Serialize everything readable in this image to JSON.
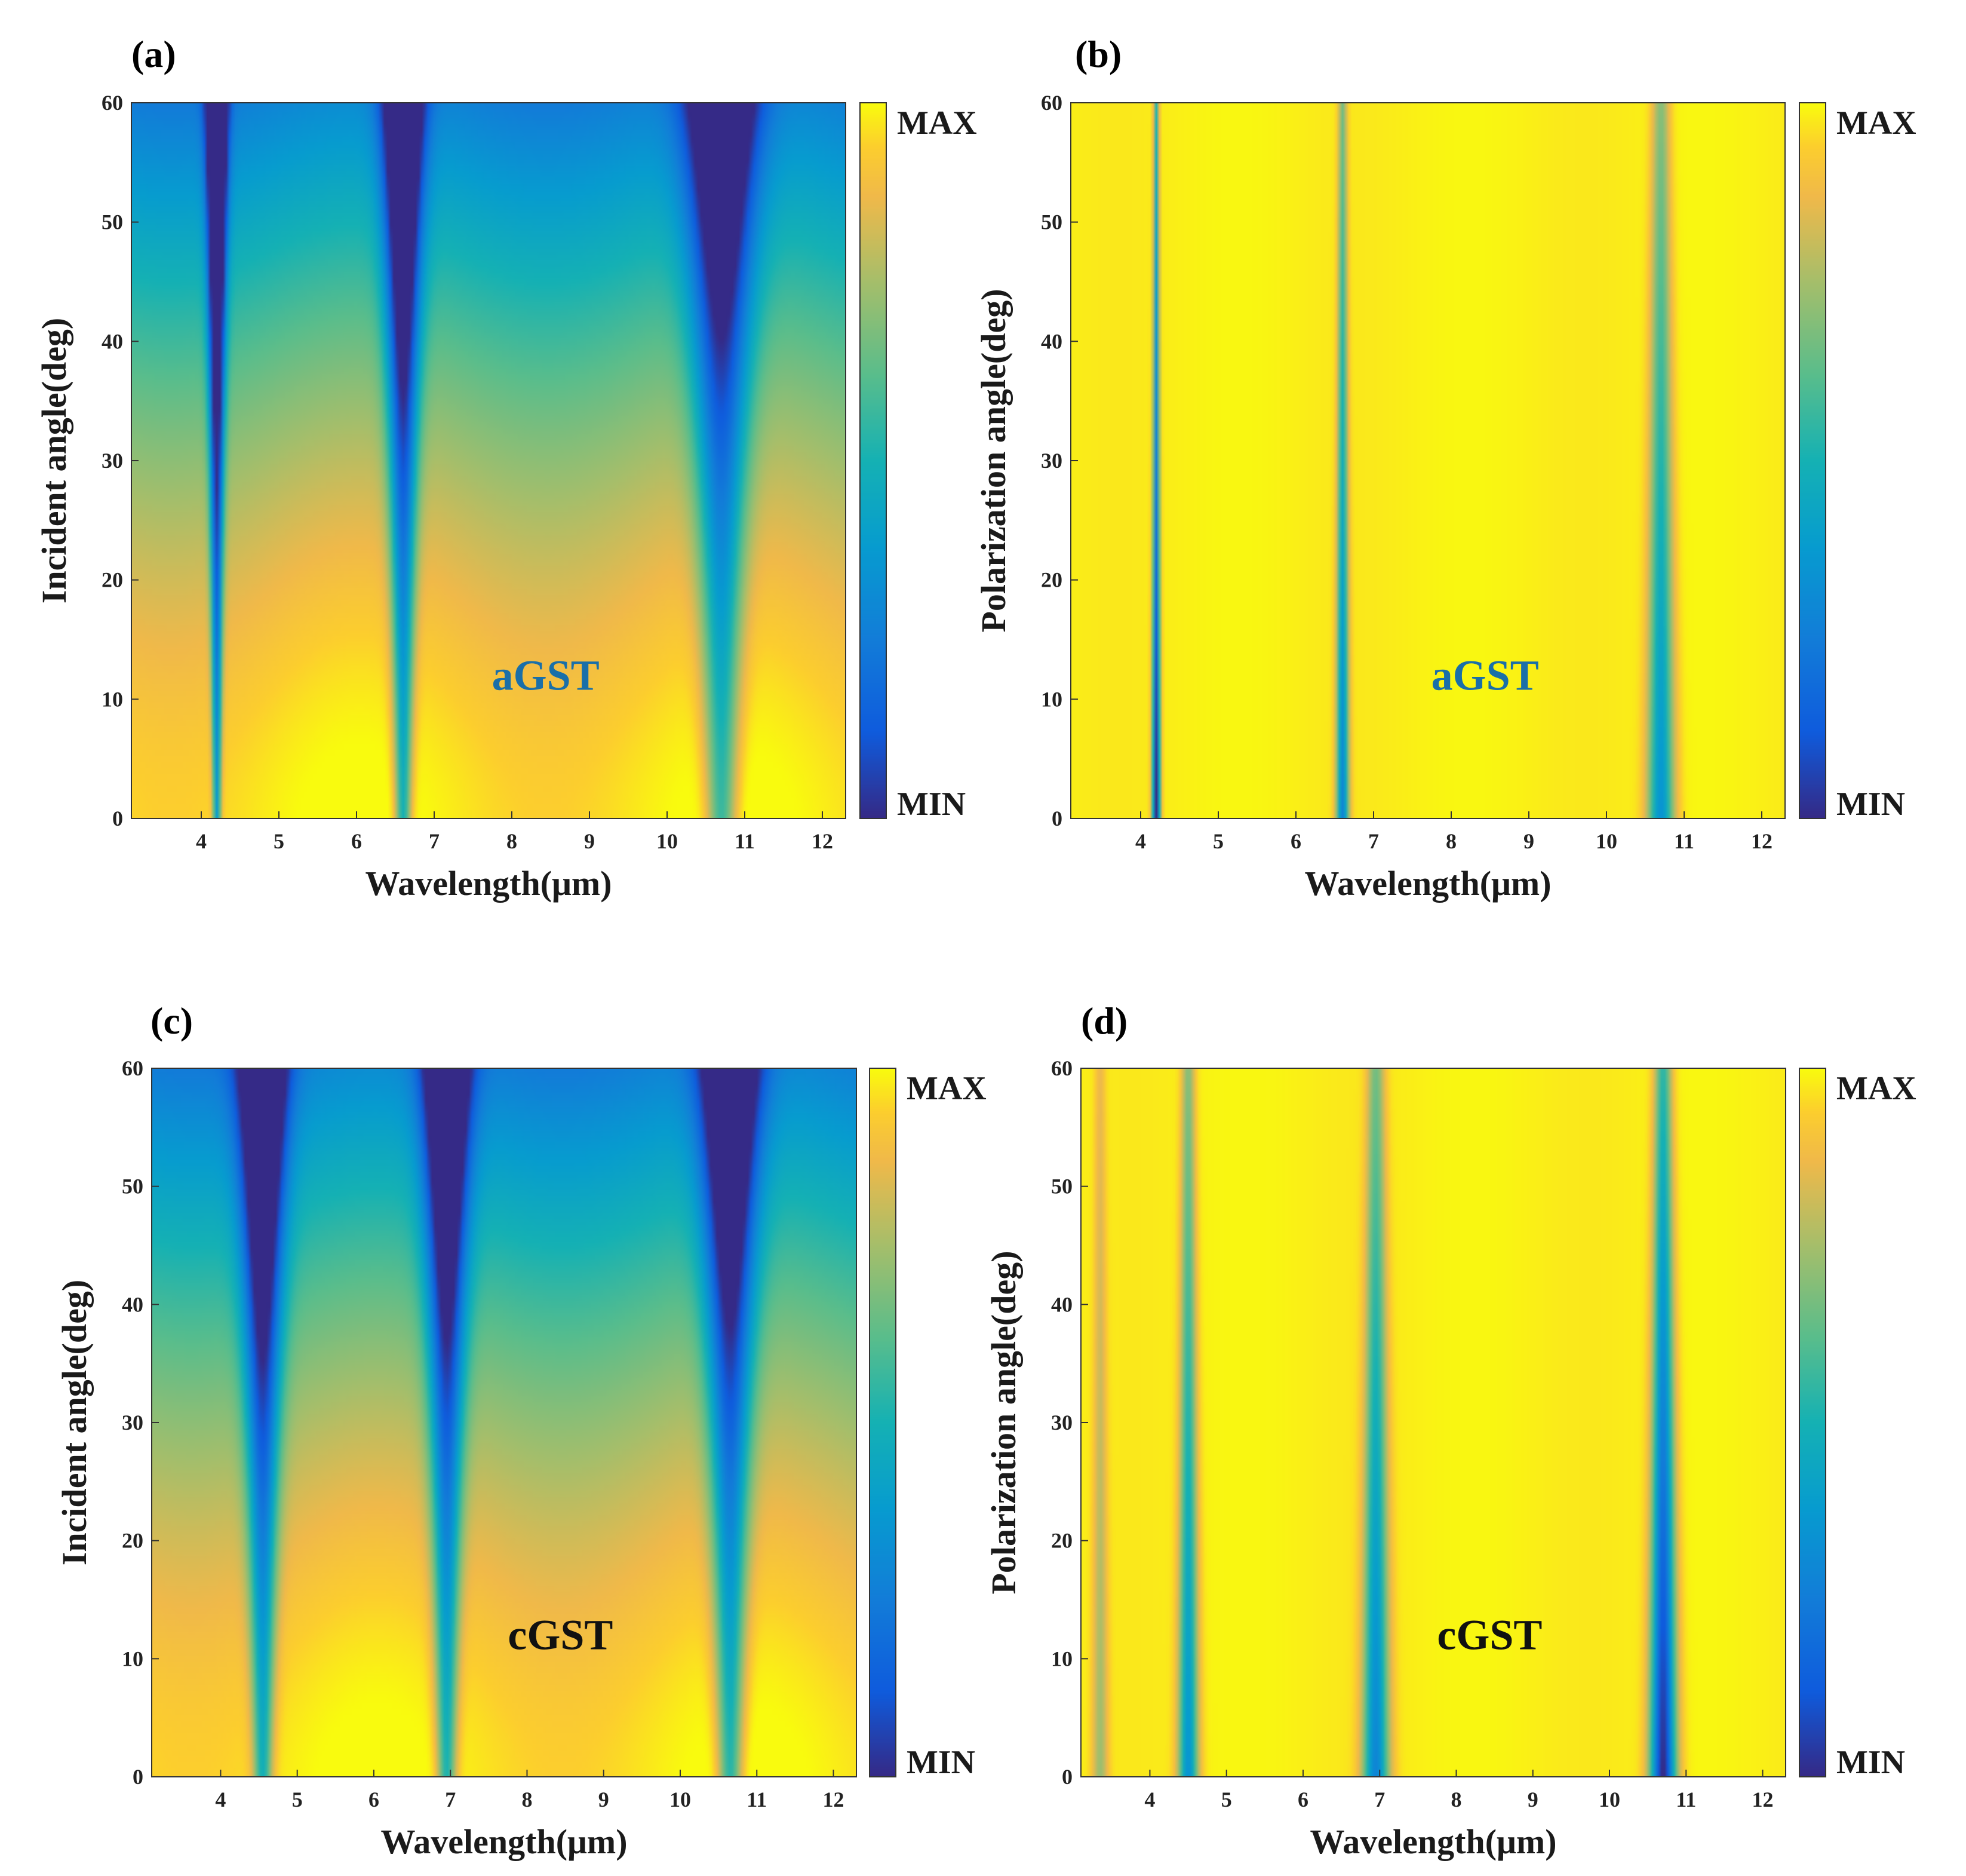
{
  "panels": [
    {
      "label": "(a)",
      "xlabel": "Wavelength(μm)",
      "ylabel": "Incident angle(deg)",
      "annotation": "aGST",
      "annotation_color": "#1a6fa8",
      "colorbar_max": "MAX",
      "colorbar_min": "MIN",
      "xticks": [
        "4",
        "5",
        "6",
        "7",
        "8",
        "9",
        "10",
        "11",
        "12"
      ],
      "yticks": [
        "0",
        "10",
        "20",
        "30",
        "40",
        "50",
        "60"
      ]
    },
    {
      "label": "(b)",
      "xlabel": "Wavelength(μm)",
      "ylabel": "Polarization angle(deg)",
      "annotation": "aGST",
      "annotation_color": "#1a6fa8",
      "colorbar_max": "MAX",
      "colorbar_min": "MIN",
      "xticks": [
        "4",
        "5",
        "6",
        "7",
        "8",
        "9",
        "10",
        "11",
        "12"
      ],
      "yticks": [
        "0",
        "10",
        "20",
        "30",
        "40",
        "50",
        "60"
      ]
    },
    {
      "label": "(c)",
      "xlabel": "Wavelength(μm)",
      "ylabel": "Incident angle(deg)",
      "annotation": "cGST",
      "annotation_color": "#111111",
      "colorbar_max": "MAX",
      "colorbar_min": "MIN",
      "xticks": [
        "4",
        "5",
        "6",
        "7",
        "8",
        "9",
        "10",
        "11",
        "12"
      ],
      "yticks": [
        "0",
        "10",
        "20",
        "30",
        "40",
        "50",
        "60"
      ]
    },
    {
      "label": "(d)",
      "xlabel": "Wavelength(μm)",
      "ylabel": "Polarization angle(deg)",
      "annotation": "cGST",
      "annotation_color": "#111111",
      "colorbar_max": "MAX",
      "colorbar_min": "MIN",
      "xticks": [
        "4",
        "5",
        "6",
        "7",
        "8",
        "9",
        "10",
        "11",
        "12"
      ],
      "yticks": [
        "0",
        "10",
        "20",
        "30",
        "40",
        "50",
        "60"
      ]
    }
  ],
  "chart_data": [
    {
      "type": "heatmap",
      "panel": "(a)",
      "x_range": [
        3.1,
        12.3
      ],
      "y_range": [
        0,
        60
      ],
      "colormap": "parula",
      "model": "angle",
      "dips_x": [
        4.2,
        6.6,
        10.7
      ],
      "dip_widths": [
        0.05,
        0.1,
        0.18
      ],
      "dip_depths": [
        0.95,
        0.85,
        0.75
      ]
    },
    {
      "type": "heatmap",
      "panel": "(b)",
      "x_range": [
        3.1,
        12.3
      ],
      "y_range": [
        0,
        60
      ],
      "colormap": "parula",
      "model": "polarization",
      "dips_x": [
        4.2,
        6.6,
        10.7
      ],
      "dip_widths": [
        0.05,
        0.08,
        0.17
      ],
      "dip_depths": [
        1.0,
        0.7,
        0.65
      ]
    },
    {
      "type": "heatmap",
      "panel": "(c)",
      "x_range": [
        3.1,
        12.3
      ],
      "y_range": [
        0,
        60
      ],
      "colormap": "parula",
      "model": "angle",
      "dips_x": [
        4.55,
        6.95,
        10.65
      ],
      "dip_widths": [
        0.12,
        0.12,
        0.15
      ],
      "dip_depths": [
        0.8,
        0.8,
        0.8
      ]
    },
    {
      "type": "heatmap",
      "panel": "(d)",
      "x_range": [
        3.1,
        12.3
      ],
      "y_range": [
        0,
        60
      ],
      "colormap": "parula",
      "model": "polarization",
      "dips_x": [
        3.35,
        4.5,
        6.95,
        10.7
      ],
      "dip_widths": [
        0.1,
        0.13,
        0.17,
        0.17
      ],
      "dip_depths": [
        0.25,
        0.65,
        0.7,
        1.0
      ]
    }
  ]
}
